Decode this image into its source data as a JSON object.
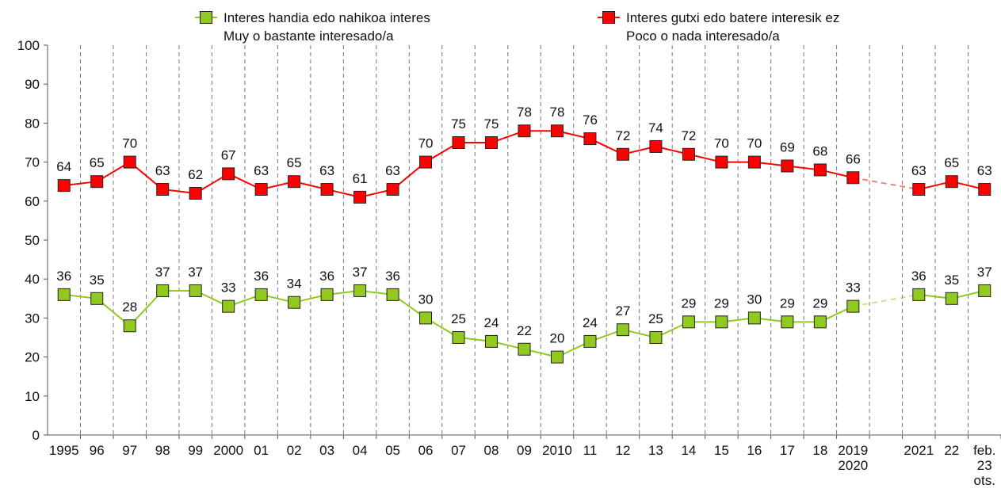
{
  "chart_data": {
    "type": "line",
    "categories": [
      "1995",
      "96",
      "97",
      "98",
      "99",
      "2000",
      "01",
      "02",
      "03",
      "04",
      "05",
      "06",
      "07",
      "08",
      "09",
      "2010",
      "11",
      "12",
      "13",
      "14",
      "15",
      "16",
      "17",
      "18",
      "2019\n2020",
      null,
      "2021",
      "22",
      "feb.\n23\nots."
    ],
    "series": [
      {
        "name": "Interes handia edo nahikoa interes\nMuy o bastante interesado/a",
        "color": "#92c91e",
        "values": [
          36,
          35,
          28,
          37,
          37,
          33,
          36,
          34,
          36,
          37,
          36,
          30,
          25,
          24,
          22,
          20,
          24,
          27,
          25,
          29,
          29,
          30,
          29,
          29,
          33,
          null,
          36,
          35,
          37
        ]
      },
      {
        "name": "Interes gutxi edo batere interesik ez\nPoco o nada interesado/a",
        "color": "#ff0000",
        "values": [
          64,
          65,
          70,
          63,
          62,
          67,
          63,
          65,
          63,
          61,
          63,
          70,
          75,
          75,
          78,
          78,
          76,
          72,
          74,
          72,
          70,
          70,
          69,
          68,
          66,
          null,
          63,
          65,
          63
        ]
      }
    ],
    "ylim": [
      0,
      100
    ],
    "yticks": [
      0,
      10,
      20,
      30,
      40,
      50,
      60,
      70,
      80,
      90,
      100
    ],
    "grid": false,
    "legend": "top"
  }
}
